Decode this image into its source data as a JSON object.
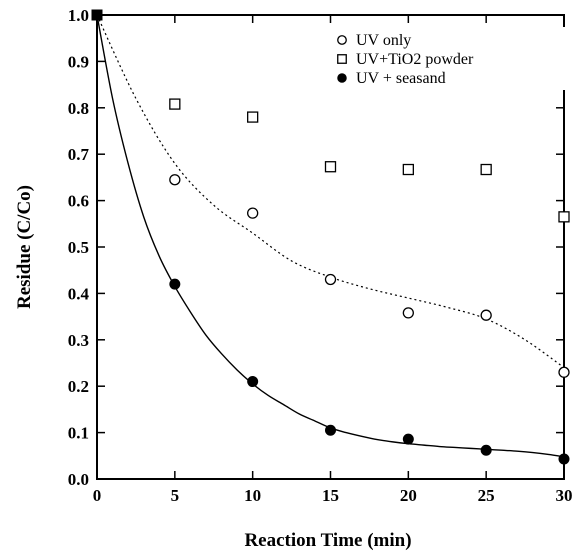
{
  "chart_data": {
    "type": "scatter",
    "xlabel": "Reaction Time (min)",
    "ylabel": "Residue (C/Co)",
    "xlim": [
      0,
      30
    ],
    "ylim": [
      0,
      1.0
    ],
    "x_ticks": [
      0,
      5,
      10,
      15,
      20,
      25,
      30
    ],
    "y_ticks": [
      0.0,
      0.1,
      0.2,
      0.3,
      0.4,
      0.5,
      0.6,
      0.7,
      0.8,
      0.9,
      1.0
    ],
    "x_tick_labels": [
      "0",
      "5",
      "10",
      "15",
      "20",
      "25",
      "30"
    ],
    "y_tick_labels": [
      "0.0",
      "0.1",
      "0.2",
      "0.3",
      "0.4",
      "0.5",
      "0.6",
      "0.7",
      "0.8",
      "0.9",
      "1.0"
    ],
    "grid": false,
    "legend_position": "top-right",
    "series": [
      {
        "name": "UV only",
        "marker": "open-circle",
        "x": [
          0,
          5,
          10,
          15,
          20,
          25,
          30
        ],
        "y": [
          1.0,
          0.645,
          0.573,
          0.43,
          0.358,
          0.353,
          0.23
        ],
        "fit_line": "dotted",
        "fit_x": [
          0,
          2.5,
          5,
          7.5,
          10,
          12.5,
          15,
          17.5,
          20,
          22.5,
          25,
          27.5,
          30
        ],
        "fit_y": [
          1.0,
          0.82,
          0.68,
          0.59,
          0.53,
          0.47,
          0.435,
          0.41,
          0.39,
          0.37,
          0.345,
          0.3,
          0.24
        ]
      },
      {
        "name": "UV+TiO2 powder",
        "marker": "open-square",
        "x": [
          0,
          5,
          10,
          15,
          20,
          25,
          30
        ],
        "y": [
          1.0,
          0.808,
          0.78,
          0.673,
          0.667,
          0.667,
          0.565
        ]
      },
      {
        "name": "UV + seasand",
        "marker": "filled-circle",
        "x": [
          0,
          5,
          10,
          15,
          20,
          25,
          30
        ],
        "y": [
          1.0,
          0.42,
          0.21,
          0.105,
          0.086,
          0.062,
          0.043
        ],
        "fit_line": "solid",
        "fit_x": [
          0,
          1,
          2,
          3,
          4,
          5,
          6,
          7,
          8,
          9,
          10,
          11,
          12,
          13,
          14,
          15,
          16,
          17,
          18,
          19,
          20,
          21,
          22,
          23,
          24,
          25,
          26,
          27,
          28,
          29,
          30
        ],
        "fit_y": [
          1.0,
          0.82,
          0.68,
          0.565,
          0.48,
          0.415,
          0.36,
          0.31,
          0.27,
          0.235,
          0.205,
          0.18,
          0.16,
          0.14,
          0.125,
          0.11,
          0.1,
          0.092,
          0.085,
          0.08,
          0.076,
          0.073,
          0.07,
          0.068,
          0.066,
          0.064,
          0.062,
          0.06,
          0.057,
          0.053,
          0.048
        ]
      }
    ]
  }
}
